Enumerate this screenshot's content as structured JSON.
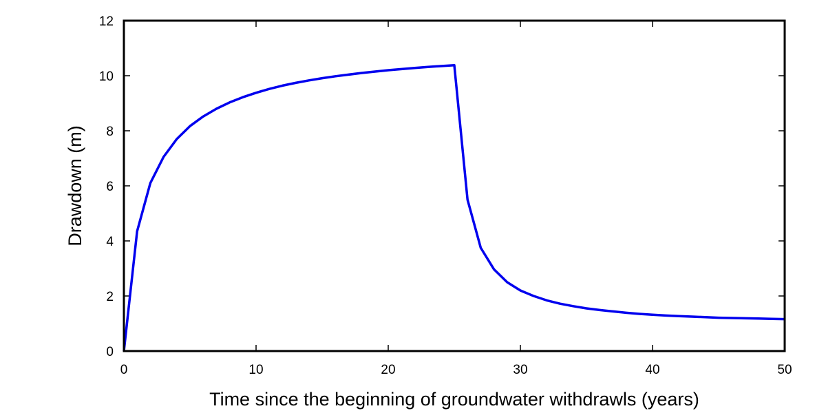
{
  "chart_data": {
    "type": "line",
    "title": "",
    "xlabel": "Time since the beginning of groundwater withdrawls (years)",
    "ylabel": "Drawdown (m)",
    "xlim": [
      0,
      50
    ],
    "ylim": [
      0,
      12
    ],
    "xticks": [
      0,
      10,
      20,
      30,
      40,
      50
    ],
    "yticks": [
      0,
      2,
      4,
      6,
      8,
      10,
      12
    ],
    "grid": false,
    "legend": "none",
    "series": [
      {
        "color": "#0000ee",
        "x": [
          0,
          1,
          2,
          3,
          4,
          5,
          6,
          7,
          8,
          9,
          10,
          11,
          12,
          13,
          14,
          15,
          16,
          17,
          18,
          19,
          20,
          21,
          22,
          23,
          24,
          25,
          26,
          27,
          28,
          29,
          30,
          31,
          32,
          33,
          34,
          35,
          36,
          37,
          38,
          39,
          40,
          41,
          42,
          43,
          44,
          45,
          46,
          47,
          48,
          49,
          50
        ],
        "y": [
          0,
          4.35,
          6.1,
          7.05,
          7.7,
          8.17,
          8.52,
          8.8,
          9.03,
          9.22,
          9.38,
          9.52,
          9.64,
          9.74,
          9.83,
          9.91,
          9.98,
          10.04,
          10.1,
          10.15,
          10.2,
          10.24,
          10.28,
          10.32,
          10.35,
          10.38,
          5.5,
          3.75,
          2.97,
          2.5,
          2.2,
          2.0,
          1.84,
          1.72,
          1.63,
          1.55,
          1.49,
          1.44,
          1.39,
          1.35,
          1.32,
          1.29,
          1.27,
          1.25,
          1.23,
          1.21,
          1.2,
          1.19,
          1.18,
          1.17,
          1.16
        ]
      }
    ]
  }
}
